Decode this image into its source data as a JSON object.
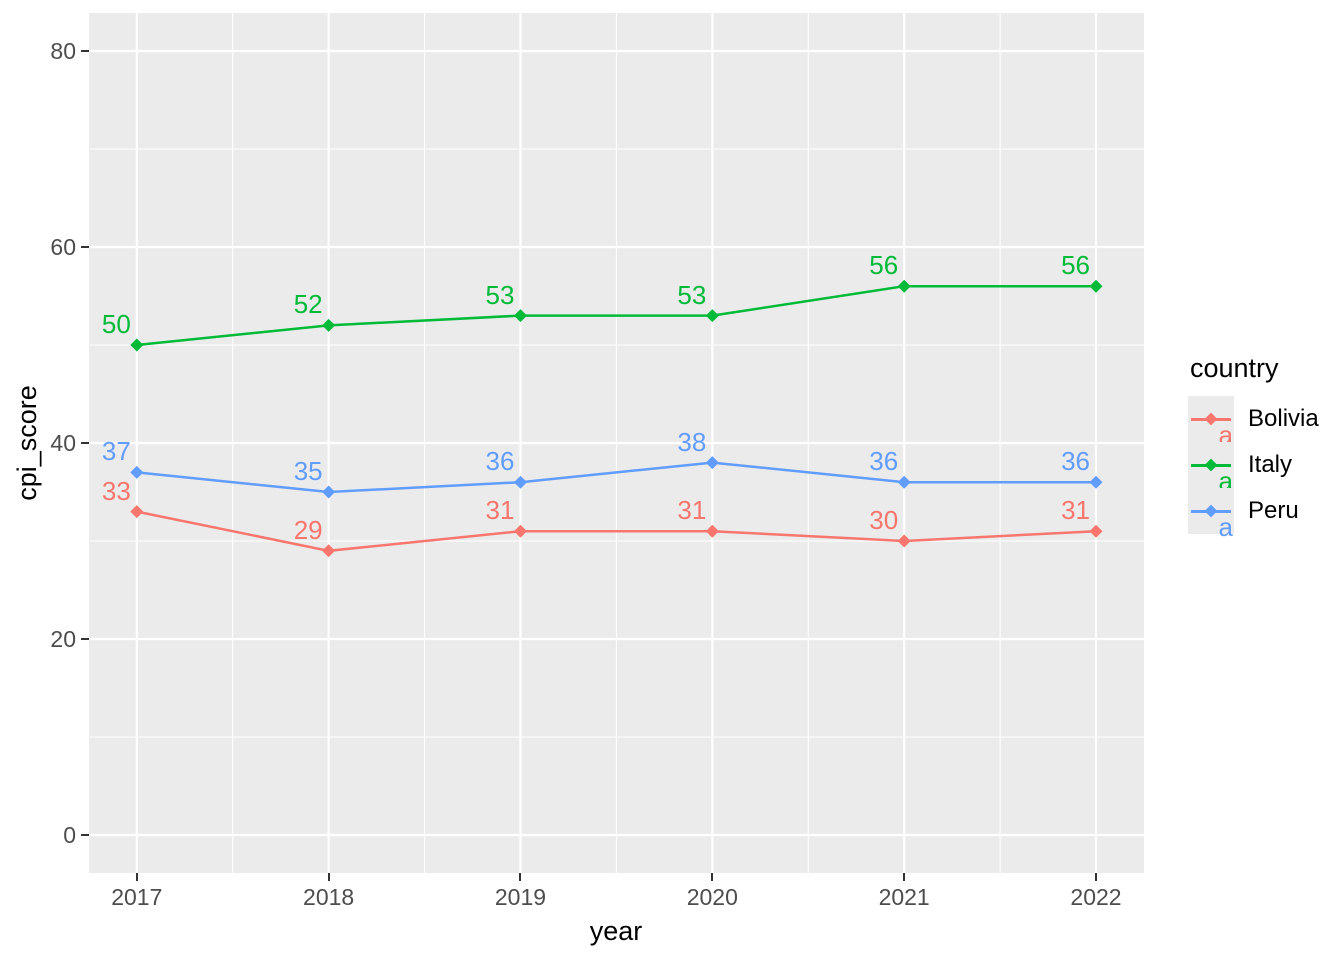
{
  "chart_data": {
    "type": "line",
    "title": "",
    "xlabel": "year",
    "ylabel": "cpi_score",
    "x": [
      2017,
      2018,
      2019,
      2020,
      2021,
      2022
    ],
    "x_tick_labels": [
      "2017",
      "2018",
      "2019",
      "2020",
      "2021",
      "2022"
    ],
    "y_tick_labels": [
      "0",
      "20",
      "40",
      "60",
      "80"
    ],
    "y_major_ticks": [
      0,
      20,
      40,
      60,
      80
    ],
    "y_minor_ticks": [
      10,
      30,
      50,
      70
    ],
    "ylim": [
      0,
      80
    ],
    "grid": true,
    "legend_position": "right",
    "data_labels_shown": true,
    "series": [
      {
        "name": "Bolivia",
        "color": "#F8766D",
        "values": [
          33,
          29,
          31,
          31,
          30,
          31
        ]
      },
      {
        "name": "Italy",
        "color": "#00BA38",
        "values": [
          50,
          52,
          53,
          53,
          56,
          56
        ]
      },
      {
        "name": "Peru",
        "color": "#619CFF",
        "values": [
          37,
          35,
          36,
          38,
          36,
          36
        ]
      }
    ]
  },
  "legend": {
    "title": "country",
    "key_glyph": "a",
    "entries": [
      {
        "label": "Bolivia",
        "color": "#F8766D"
      },
      {
        "label": "Italy",
        "color": "#00BA38"
      },
      {
        "label": "Peru",
        "color": "#619CFF"
      }
    ]
  },
  "colors": {
    "figure_bg": "#FFFFFF",
    "panel_bg": "#EBEBEB",
    "grid": "#FFFFFF",
    "tick_text": "#4D4D4D",
    "tick_mark": "#333333",
    "axis_title": "#000000",
    "legend_key_bg": "#EBEBEB"
  }
}
